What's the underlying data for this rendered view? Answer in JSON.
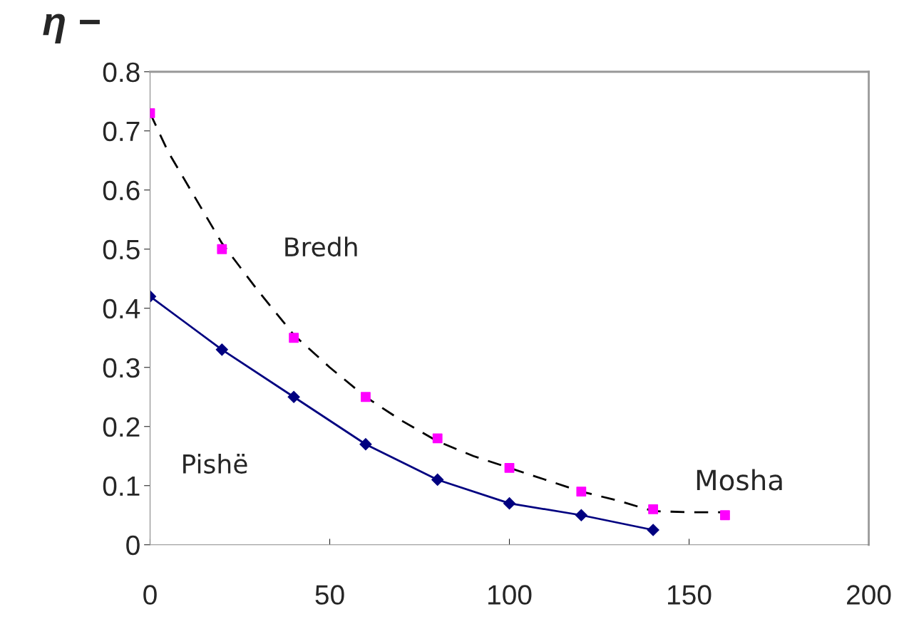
{
  "chart_data": {
    "type": "line",
    "xlabel": "Mosha",
    "ylabel": "η −",
    "xlim": [
      0,
      200
    ],
    "xticks": [
      0,
      50,
      100,
      150,
      200
    ],
    "ylim": [
      0,
      0.8
    ],
    "yticks": [
      0,
      0.1,
      0.2,
      0.3,
      0.4,
      0.5,
      0.6,
      0.7,
      0.8
    ],
    "grid": false,
    "legend": false,
    "series": [
      {
        "color": "#000000",
        "line_style": "dashed",
        "marker": "none",
        "x": [
          0,
          5,
          20,
          30,
          40,
          50,
          60,
          70,
          80,
          90,
          100,
          110,
          120,
          130,
          140,
          150,
          160
        ],
        "values": [
          0.73,
          0.665,
          0.51,
          0.43,
          0.355,
          0.3,
          0.25,
          0.21,
          0.175,
          0.15,
          0.13,
          0.11,
          0.09,
          0.075,
          0.057,
          0.055,
          0.055
        ]
      },
      {
        "type": "scatter",
        "name": "Bredh",
        "color": "#ff00ff",
        "marker": "square",
        "x": [
          0,
          20,
          40,
          60,
          80,
          100,
          120,
          140,
          160
        ],
        "values": [
          0.73,
          0.5,
          0.35,
          0.25,
          0.18,
          0.13,
          0.09,
          0.06,
          0.05
        ]
      },
      {
        "name": "Pishë",
        "color": "#000080",
        "line_style": "solid",
        "marker": "diamond",
        "x": [
          0,
          20,
          40,
          60,
          80,
          100,
          120,
          140
        ],
        "values": [
          0.42,
          0.33,
          0.25,
          0.17,
          0.11,
          0.07,
          0.05,
          0.025
        ]
      }
    ]
  }
}
